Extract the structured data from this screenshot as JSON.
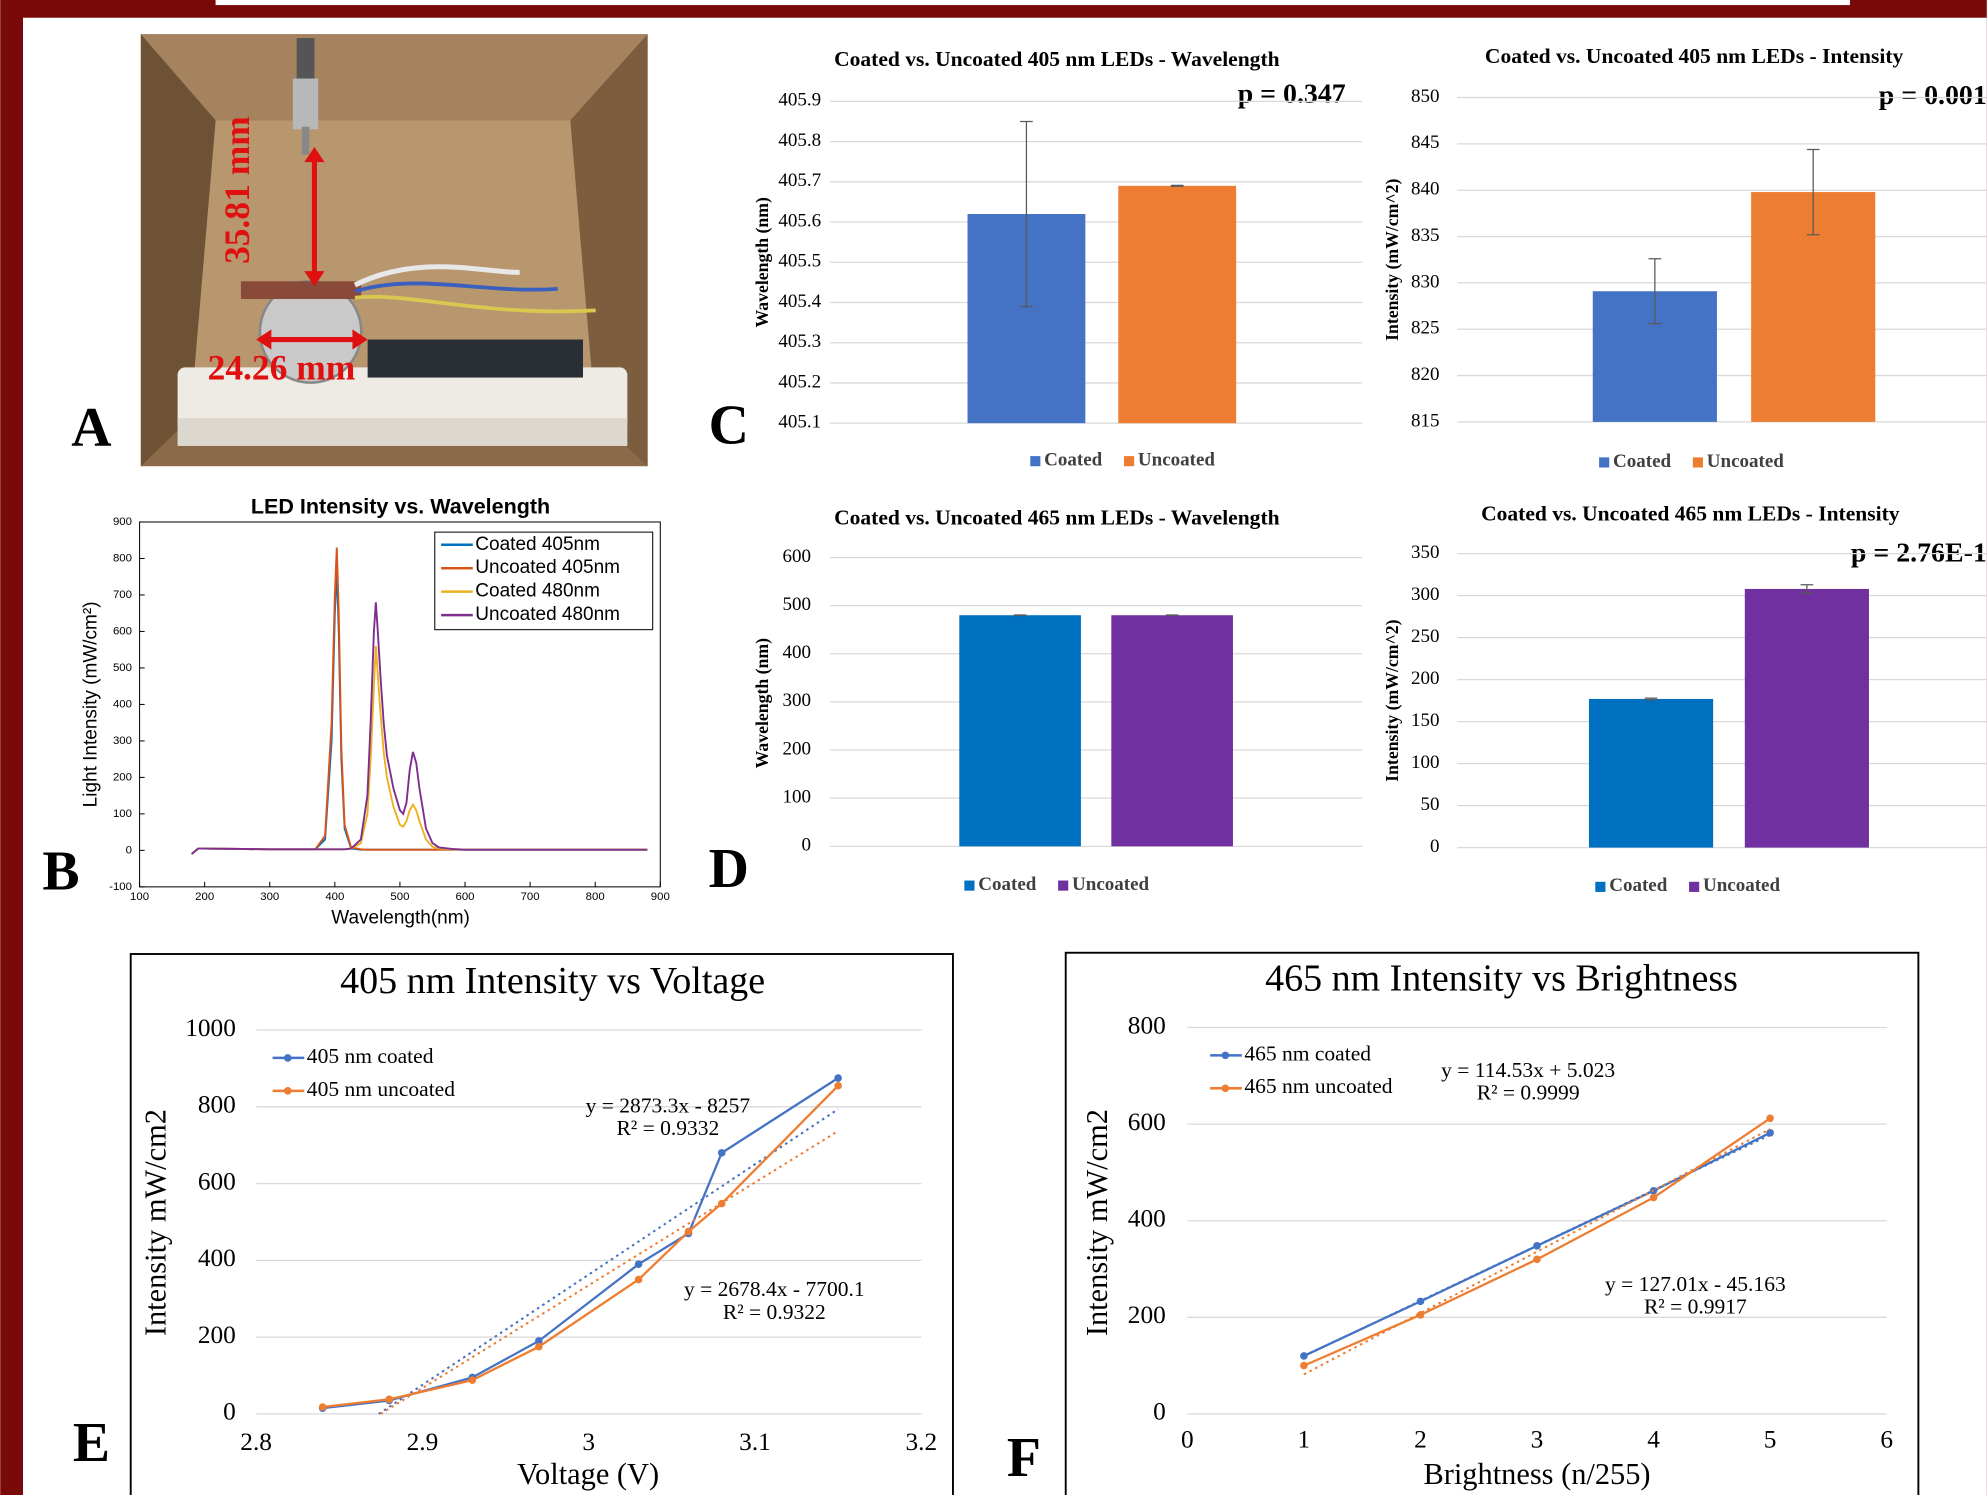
{
  "panel_labels": [
    "A",
    "B",
    "C",
    "D",
    "E",
    "F"
  ],
  "photo_labels": [
    "35.81 mm",
    "24.26 mm"
  ],
  "chart_data": [
    {
      "type": "line",
      "title": "LED Intensity vs. Wavelength",
      "x_label": "Wavelength(nm)",
      "y_label": "Light Intensity (mW/cm²)",
      "x": [
        180,
        190,
        200,
        300,
        370,
        385,
        395,
        400,
        403,
        406,
        410,
        415,
        425,
        440,
        450,
        455,
        460,
        463,
        466,
        470,
        475,
        480,
        490,
        500,
        505,
        510,
        515,
        520,
        525,
        530,
        540,
        550,
        560,
        580,
        600,
        700,
        880
      ],
      "series": [
        {
          "name": "Coated 405nm",
          "color": "#0072bd",
          "values": [
            -10,
            5,
            5,
            3,
            3,
            30,
            300,
            650,
            770,
            600,
            250,
            60,
            5,
            2,
            2,
            2,
            2,
            2,
            2,
            2,
            2,
            2,
            2,
            2,
            2,
            2,
            2,
            2,
            2,
            2,
            2,
            2,
            2,
            2,
            2,
            2,
            2
          ]
        },
        {
          "name": "Uncoated 405nm",
          "color": "#d95319",
          "values": [
            -10,
            5,
            5,
            3,
            3,
            40,
            350,
            700,
            830,
            650,
            280,
            70,
            8,
            3,
            2,
            2,
            2,
            2,
            2,
            2,
            2,
            2,
            2,
            2,
            2,
            2,
            2,
            2,
            2,
            2,
            2,
            2,
            2,
            2,
            2,
            2,
            2
          ]
        },
        {
          "name": "Coated 480nm",
          "color": "#edb120",
          "values": [
            -10,
            5,
            5,
            3,
            3,
            3,
            3,
            3,
            3,
            3,
            3,
            3,
            5,
            20,
            100,
            250,
            450,
            560,
            480,
            380,
            270,
            200,
            120,
            70,
            65,
            80,
            110,
            125,
            110,
            80,
            30,
            10,
            5,
            3,
            2,
            2,
            2
          ]
        },
        {
          "name": "Uncoated 480nm",
          "color": "#7e2f8e",
          "values": [
            -10,
            5,
            5,
            3,
            3,
            3,
            3,
            3,
            3,
            3,
            3,
            3,
            5,
            30,
            150,
            350,
            600,
            680,
            600,
            480,
            350,
            260,
            170,
            110,
            100,
            130,
            220,
            270,
            240,
            170,
            60,
            20,
            8,
            4,
            2,
            2,
            2
          ]
        }
      ],
      "xlim": [
        100,
        900
      ],
      "xticks": [
        100,
        200,
        300,
        400,
        500,
        600,
        700,
        800,
        900
      ],
      "ylim": [
        -100,
        900
      ],
      "yticks": [
        -100,
        0,
        100,
        200,
        300,
        400,
        500,
        600,
        700,
        800,
        900
      ],
      "grid": false,
      "legend": "upper right"
    },
    {
      "type": "bar",
      "title": "Coated vs. Uncoated 405 nm LEDs - Wavelength",
      "annotation": "p = 0.347",
      "y_label": "Wavelength (nm)",
      "categories": [
        null
      ],
      "series": [
        {
          "name": "Coated",
          "color": "#4472c4",
          "values": [
            405.62
          ],
          "errors": [
            0.23
          ]
        },
        {
          "name": "Uncoated",
          "color": "#ed7d31",
          "values": [
            405.69
          ],
          "errors": [
            0.001
          ]
        }
      ],
      "ylim": [
        405.1,
        405.9
      ],
      "yticks": [
        405.1,
        405.2,
        405.3,
        405.4,
        405.5,
        405.6,
        405.7,
        405.8,
        405.9
      ],
      "grid": true,
      "legend": "bottom"
    },
    {
      "type": "bar",
      "title": "Coated vs. Uncoated 405 nm LEDs - Intensity",
      "annotation": "p = 0.001",
      "y_label": "Intensity (mW/cm^2)",
      "categories": [
        null
      ],
      "series": [
        {
          "name": "Coated",
          "color": "#4472c4",
          "values": [
            829.1
          ],
          "errors": [
            3.5
          ]
        },
        {
          "name": "Uncoated",
          "color": "#ed7d31",
          "values": [
            839.8
          ],
          "errors": [
            4.6
          ]
        }
      ],
      "ylim": [
        815,
        850
      ],
      "yticks": [
        815,
        820,
        825,
        830,
        835,
        840,
        845,
        850
      ],
      "grid": true,
      "legend": "bottom"
    },
    {
      "type": "bar",
      "title": "Coated vs. Uncoated 465 nm LEDs - Wavelength",
      "y_label": "Wavelength (nm)",
      "categories": [
        null
      ],
      "series": [
        {
          "name": "Coated",
          "color": "#0070c0",
          "values": [
            480
          ],
          "errors": [
            0.5
          ]
        },
        {
          "name": "Uncoated",
          "color": "#7030a0",
          "values": [
            480
          ],
          "errors": [
            0.5
          ]
        }
      ],
      "ylim": [
        0,
        600
      ],
      "yticks": [
        0,
        100,
        200,
        300,
        400,
        500,
        600
      ],
      "grid": true,
      "legend": "bottom"
    },
    {
      "type": "bar",
      "title": "Coated vs. Uncoated 465 nm LEDs - Intensity",
      "annotation": "p = 2.76E-1",
      "y_label": "Intensity (mW/cm^2)",
      "categories": [
        null
      ],
      "series": [
        {
          "name": "Coated",
          "color": "#0070c0",
          "values": [
            177
          ],
          "errors": [
            1
          ]
        },
        {
          "name": "Uncoated",
          "color": "#7030a0",
          "values": [
            308
          ],
          "errors": [
            5
          ]
        }
      ],
      "ylim": [
        0,
        350
      ],
      "yticks": [
        0,
        50,
        100,
        150,
        200,
        250,
        300,
        350
      ],
      "grid": true,
      "legend": "bottom"
    },
    {
      "type": "line",
      "title": "405 nm Intensity vs Voltage",
      "x_label": "Voltage (V)",
      "y_label": "Intensity mW/cm2",
      "markers": true,
      "x": [
        2.84,
        2.88,
        2.93,
        2.97,
        3.03,
        3.06,
        3.08,
        3.15
      ],
      "series": [
        {
          "name": "405 nm coated",
          "color": "#4472c4",
          "values": [
            15,
            35,
            95,
            190,
            390,
            470,
            680,
            875
          ],
          "trendline": {
            "slope": 2873.3,
            "intercept": -8257,
            "label": "y = 2873.3x - 8257",
            "r2_label": "R² = 0.9332"
          }
        },
        {
          "name": "405 nm uncoated",
          "color": "#ed7d31",
          "values": [
            18,
            38,
            88,
            175,
            350,
            475,
            548,
            855
          ],
          "trendline": {
            "slope": 2678.4,
            "intercept": -7700.1,
            "label": "y = 2678.4x - 7700.1",
            "r2_label": "R² = 0.9322"
          }
        }
      ],
      "xlim": [
        2.8,
        3.2
      ],
      "xticks": [
        2.8,
        2.9,
        3,
        3.1,
        3.2
      ],
      "ylim": [
        0,
        1000
      ],
      "yticks": [
        0,
        200,
        400,
        600,
        800,
        1000
      ],
      "grid": true,
      "legend": "upper left"
    },
    {
      "type": "line",
      "title": "465 nm Intensity vs Brightness",
      "x_label": "Brightness (n/255)",
      "y_label": "Intensity mW/cm2",
      "markers": true,
      "x": [
        1,
        2,
        3,
        4,
        5
      ],
      "series": [
        {
          "name": "465 nm coated",
          "color": "#4472c4",
          "values": [
            120,
            233,
            348,
            462,
            582
          ],
          "trendline": {
            "slope": 114.53,
            "intercept": 5.023,
            "label": "y = 114.53x + 5.023",
            "r2_label": "R² = 0.9999"
          }
        },
        {
          "name": "465 nm uncoated",
          "color": "#ed7d31",
          "values": [
            100,
            205,
            320,
            448,
            612
          ],
          "trendline": {
            "slope": 127.01,
            "intercept": -45.163,
            "label": "y = 127.01x - 45.163",
            "r2_label": "R² = 0.9917"
          }
        }
      ],
      "xlim": [
        0,
        6
      ],
      "xticks": [
        0,
        1,
        2,
        3,
        4,
        5,
        6
      ],
      "ylim": [
        0,
        800
      ],
      "yticks": [
        0,
        200,
        400,
        600,
        800
      ],
      "grid": true,
      "legend": "upper left"
    }
  ]
}
